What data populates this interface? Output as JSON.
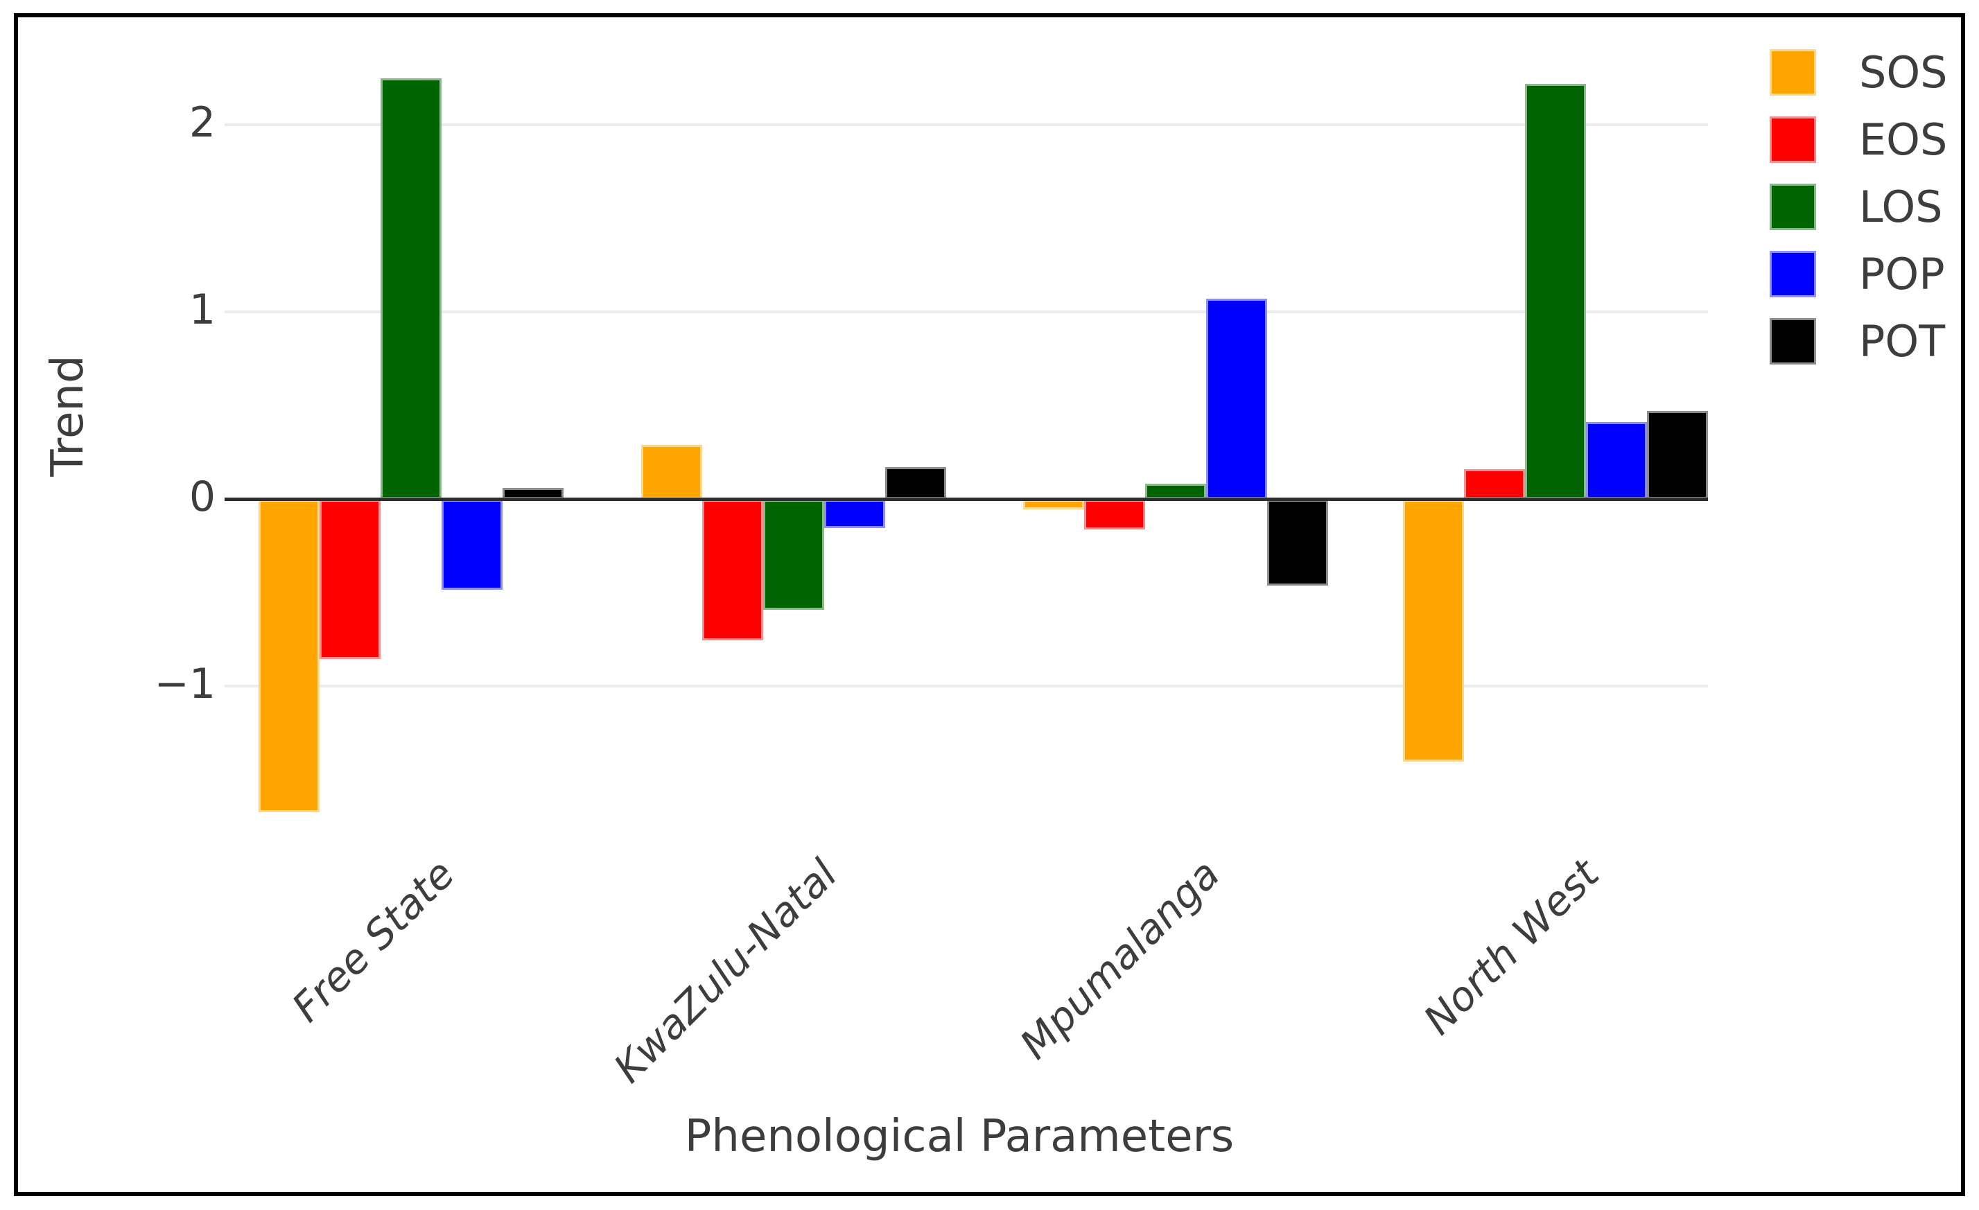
{
  "chart_data": {
    "type": "bar",
    "title": "",
    "xlabel": "Phenological Parameters",
    "ylabel": "Trend",
    "categories": [
      "Free State",
      "KwaZulu-Natal",
      "Mpumalanga",
      "North West"
    ],
    "series": [
      {
        "name": "SOS",
        "color": "#FFA500",
        "values": [
          -1.67,
          0.29,
          -0.05,
          -1.4
        ]
      },
      {
        "name": "EOS",
        "color": "#FF0000",
        "values": [
          -0.85,
          -0.75,
          -0.16,
          0.16
        ]
      },
      {
        "name": "LOS",
        "color": "#006400",
        "values": [
          2.25,
          -0.59,
          0.08,
          2.22
        ]
      },
      {
        "name": "POP",
        "color": "#0000FF",
        "values": [
          -0.48,
          -0.15,
          1.07,
          0.41
        ]
      },
      {
        "name": "POT",
        "color": "#000000",
        "values": [
          0.06,
          0.17,
          -0.46,
          0.47
        ]
      }
    ],
    "yticks": [
      {
        "label": "2",
        "value": 2
      },
      {
        "label": "1",
        "value": 1
      },
      {
        "label": "0",
        "value": 0
      },
      {
        "label": "−1",
        "value": -1
      }
    ],
    "ylim": [
      -1.75,
      2.42
    ],
    "grid": true,
    "legend_position": "top-right"
  },
  "style": {
    "gridline_color": "#ececec",
    "axis_line_color": "#2e2e2e",
    "text_color": "#3d3d3d",
    "frame_color": "#000000",
    "background": "#ffffff"
  }
}
